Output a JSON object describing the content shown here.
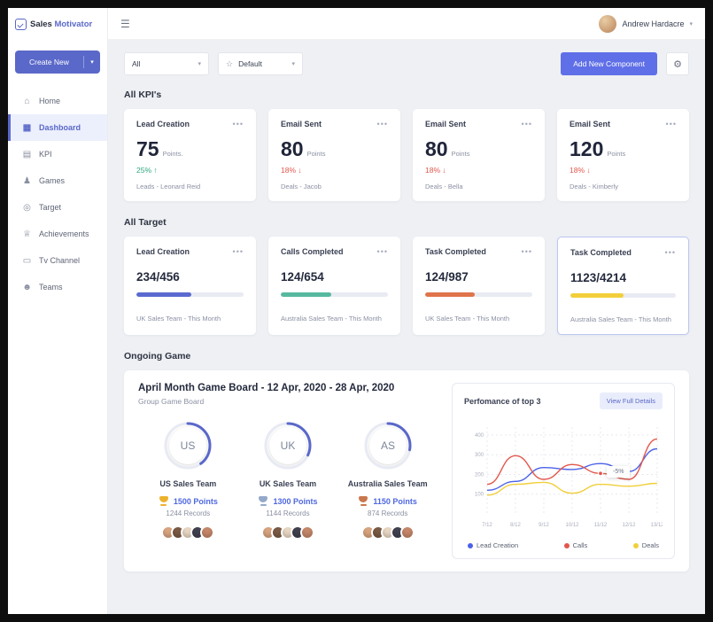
{
  "colors": {
    "accent": "#5a68c9",
    "primary_button": "#5f6fe8",
    "green": "#2fa77c",
    "red": "#e2574c"
  },
  "icons": {
    "menu": "☰",
    "caret": "▾",
    "star": "☆",
    "gear": "⚙",
    "more": "•••",
    "up_arrow": "↑",
    "down_arrow": "↓"
  },
  "brand": {
    "primary": "Sales",
    "secondary": "Motivator"
  },
  "header": {
    "user_name": "Andrew Hardacre"
  },
  "sidebar": {
    "create_new": "Create New",
    "items": [
      {
        "label": "Home",
        "glyph": "⌂"
      },
      {
        "label": "Dashboard",
        "glyph": "▦"
      },
      {
        "label": "KPI",
        "glyph": "▤"
      },
      {
        "label": "Games",
        "glyph": "♟"
      },
      {
        "label": "Target",
        "glyph": "◎"
      },
      {
        "label": "Achievements",
        "glyph": "♕"
      },
      {
        "label": "Tv Channel",
        "glyph": "▭"
      },
      {
        "label": "Teams",
        "glyph": "☻"
      }
    ]
  },
  "toolbar": {
    "filter_all": "All",
    "filter_default": "Default",
    "add_component": "Add New Component"
  },
  "kpi_section": {
    "title": "All KPI's",
    "cards": [
      {
        "title": "Lead Creation",
        "value": "75",
        "unit": "Points.",
        "delta": "25%",
        "arrow": "↑",
        "direction": "up",
        "footer": "Leads - Leonard Reid"
      },
      {
        "title": "Email Sent",
        "value": "80",
        "unit": "Points",
        "delta": "18%",
        "arrow": "↓",
        "direction": "down",
        "footer": "Deals - Jacob"
      },
      {
        "title": "Email Sent",
        "value": "80",
        "unit": "Points",
        "delta": "18%",
        "arrow": "↓",
        "direction": "down",
        "footer": "Deals - Bella"
      },
      {
        "title": "Email Sent",
        "value": "120",
        "unit": "Points",
        "delta": "18%",
        "arrow": "↓",
        "direction": "down",
        "footer": "Deals - Kimberly"
      }
    ]
  },
  "target_section": {
    "title": "All Target",
    "cards": [
      {
        "title": "Lead Creation",
        "value": "234/456",
        "progress": 51,
        "color": "#5b6ad0",
        "footer": "UK Sales Team  -  This Month"
      },
      {
        "title": "Calls Completed",
        "value": "124/654",
        "progress": 47,
        "color": "#56b99f",
        "footer": "Australia Sales Team  -  This Month"
      },
      {
        "title": "Task Completed",
        "value": "124/987",
        "progress": 46,
        "color": "#e0744c",
        "footer": "UK Sales Team  -  This Month"
      },
      {
        "title": "Task Completed",
        "value": "1123/4214",
        "progress": 50,
        "color": "#f2cf3a",
        "footer": "Australia Sales Team  -  This Month"
      }
    ]
  },
  "game_section": {
    "title": "Ongoing Game",
    "board_title": "April Month Game Board - 12 Apr, 2020 -  28 Apr, 2020",
    "board_subtitle": "Group Game Board",
    "teams": [
      {
        "abbr": "US",
        "name": "US Sales Team",
        "points": "1500 Points",
        "records": "1244 Records",
        "trophy_color": "#ecb22e",
        "progress": 40
      },
      {
        "abbr": "UK",
        "name": "UK Sales Team",
        "points": "1300 Points",
        "records": "1144 Records",
        "trophy_color": "#94a9c9",
        "progress": 32
      },
      {
        "abbr": "AS",
        "name": "Australia Sales Team",
        "points": "1150 Points",
        "records": "874 Records",
        "trophy_color": "#c9774d",
        "progress": 28
      }
    ],
    "performance": {
      "title": "Perfomance of top 3",
      "button": "View Full Details"
    }
  },
  "chart_data": {
    "type": "line",
    "title": "Perfomance of top 3",
    "x": [
      "7/12",
      "8/12",
      "9/12",
      "10/12",
      "11/12",
      "12/12",
      "13/12"
    ],
    "series": [
      {
        "name": "Lead Creation",
        "color": "#4b62e8",
        "values": [
          120,
          165,
          235,
          225,
          255,
          215,
          330
        ]
      },
      {
        "name": "Calls",
        "color": "#e2574c",
        "values": [
          150,
          295,
          175,
          250,
          205,
          175,
          380
        ]
      },
      {
        "name": "Deals",
        "color": "#f0cf3c",
        "values": [
          95,
          150,
          160,
          105,
          150,
          140,
          155
        ]
      }
    ],
    "ylim": [
      0,
      440
    ],
    "yticks": [
      100,
      200,
      300,
      400
    ],
    "grid": true,
    "legend_position": "bottom",
    "marker": {
      "series": 1,
      "index": 4
    },
    "tooltip": "-5%"
  }
}
